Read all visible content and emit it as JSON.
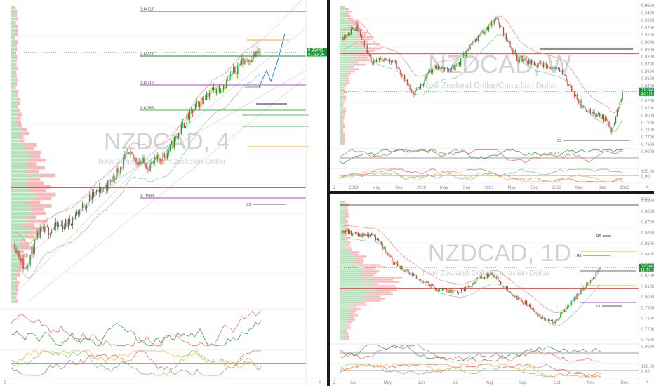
{
  "chart_data": [
    {
      "type": "candlestick",
      "symbol": "NZDCAD",
      "interval": "4",
      "subtitle": "New Zealand Dollar/Canadian Dollar",
      "price_label": "0.82442",
      "countdown": "01:33:26",
      "ylim": [
        0.755,
        0.87
      ],
      "fib_levels": [
        "0.84717",
        "0.83321",
        "0.82712",
        "0.81765",
        "0.79988"
      ],
      "pivot_labels": [
        "S3"
      ],
      "indicators": [
        "RSI",
        "Stochastic RSI"
      ]
    },
    {
      "type": "candlestick",
      "symbol": "NZDCAD",
      "interval": "W",
      "subtitle": "New Zealand Dollar/Canadian Dollar",
      "currency": "CAD",
      "price_label": "0.82442",
      "countdown": "4d 12h",
      "ylim": [
        0.75,
        0.95
      ],
      "y_ticks": [
        "0.95000",
        "0.94000",
        "0.93000",
        "0.92000",
        "0.91000",
        "0.90000",
        "0.89000",
        "0.88000",
        "0.87000",
        "0.86000",
        "0.85000",
        "0.84000",
        "0.83000",
        "0.82000",
        "0.81000",
        "0.80000",
        "0.79000",
        "0.78000",
        "0.77000",
        "0.76000"
      ],
      "x_ticks": [
        "2019",
        "May",
        "Sep",
        "2020",
        "May",
        "Sep",
        "2021",
        "May",
        "Sep",
        "2022",
        "May",
        "Sep",
        "2023"
      ],
      "pivot_labels": [
        "S3"
      ],
      "osc_ticks": [
        "0.00000",
        "100.00",
        "0.00"
      ],
      "indicators": [
        "MACD",
        "Stochastic RSI"
      ]
    },
    {
      "type": "candlestick",
      "symbol": "NZDCAD",
      "interval": "1D",
      "subtitle": "New Zealand Dollar/Canadian Dollar",
      "currency": "CAD",
      "price_label": "0.82442",
      "countdown": "11:33:26",
      "ylim": [
        0.755,
        0.895
      ],
      "y_ticks": [
        "0.89000",
        "0.88000",
        "0.87000",
        "0.86000",
        "0.85000",
        "0.84000",
        "0.83000",
        "0.82000",
        "0.81000",
        "0.80000",
        "0.79000",
        "0.78000",
        "0.77000",
        "0.76000"
      ],
      "x_ticks": [
        "Apr",
        "May",
        "Jun",
        "Jul",
        "Aug",
        "Sep",
        "Oct",
        "Nov",
        "Dec"
      ],
      "pivot_labels": [
        "R5",
        "R3",
        "S3"
      ],
      "osc_ticks": [
        "0.00000",
        "100.00",
        "0.00"
      ],
      "indicators": [
        "MACD",
        "Stochastic RSI"
      ]
    }
  ],
  "ui": {
    "colors": {
      "up": "#1a9a33",
      "down": "#e53935",
      "poc": "#d32f2f",
      "vp_green": "#9bd8a4",
      "vp_red": "#f4a3a3",
      "price_tag": "#1a9a33",
      "watermark": "#cfd3d9"
    },
    "icons": [
      "gear-icon",
      "auto-scale-icon"
    ],
    "axis_letters": {
      "zoom": "Z",
      "auto": "A"
    }
  }
}
